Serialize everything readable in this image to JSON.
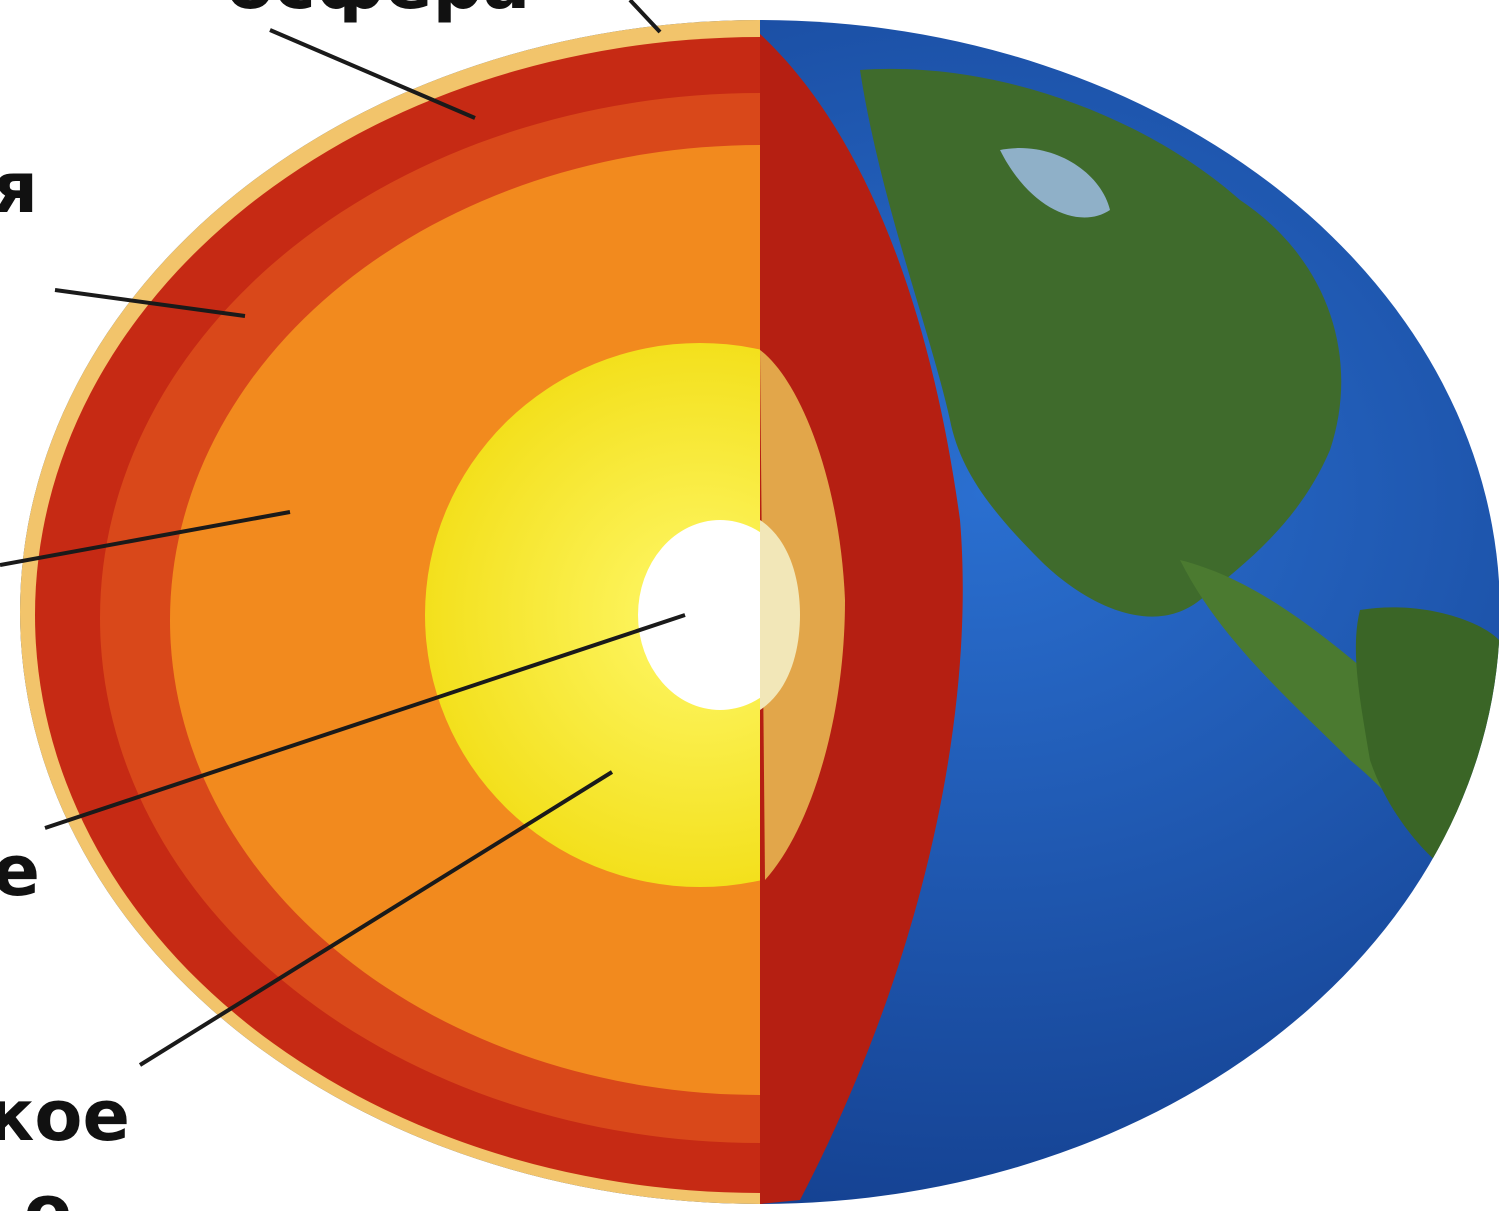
{
  "labels": [
    "осфера",
    "я",
    "е",
    "кое",
    "о"
  ]
}
